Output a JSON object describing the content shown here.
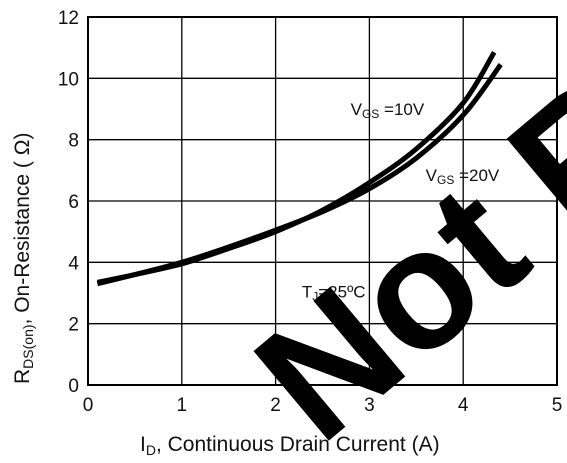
{
  "chart_data": {
    "type": "line",
    "xlabel": {
      "main": "I",
      "sub": "D",
      "rest": ", Continuous Drain Current (A)"
    },
    "ylabel": {
      "main": "R",
      "sub": "DS(on)",
      "rest": ", On-Resistance ( Ω)"
    },
    "xlim": [
      0,
      5
    ],
    "ylim": [
      0,
      12
    ],
    "x_ticks": [
      "0",
      "1",
      "2",
      "3",
      "4",
      "5"
    ],
    "y_ticks": [
      "0",
      "2",
      "4",
      "6",
      "8",
      "10",
      "12"
    ],
    "grid": true,
    "series": [
      {
        "name": "VGS=10V",
        "points": [
          [
            0.1,
            3.35
          ],
          [
            0.5,
            3.6
          ],
          [
            1.0,
            3.95
          ],
          [
            1.5,
            4.45
          ],
          [
            2.0,
            5.0
          ],
          [
            2.5,
            5.7
          ],
          [
            3.0,
            6.6
          ],
          [
            3.5,
            7.7
          ],
          [
            4.0,
            9.2
          ],
          [
            4.33,
            10.85
          ]
        ]
      },
      {
        "name": "VGS=20V",
        "points": [
          [
            0.1,
            3.3
          ],
          [
            0.5,
            3.6
          ],
          [
            1.0,
            4.0
          ],
          [
            1.5,
            4.5
          ],
          [
            2.0,
            5.05
          ],
          [
            2.5,
            5.65
          ],
          [
            3.0,
            6.4
          ],
          [
            3.5,
            7.4
          ],
          [
            4.0,
            8.8
          ],
          [
            4.4,
            10.45
          ]
        ]
      }
    ],
    "annotations": [
      {
        "main": "V",
        "sub": "GS",
        "rest": " =10V",
        "x": 2.8,
        "y": 8.8
      },
      {
        "main": "V",
        "sub": "GS",
        "rest": " =20V",
        "x": 3.6,
        "y": 6.65
      },
      {
        "main": "T",
        "sub": "J",
        "rest": "=25ºC",
        "x": 2.28,
        "y": 2.85
      }
    ]
  },
  "watermark": "Not Re"
}
